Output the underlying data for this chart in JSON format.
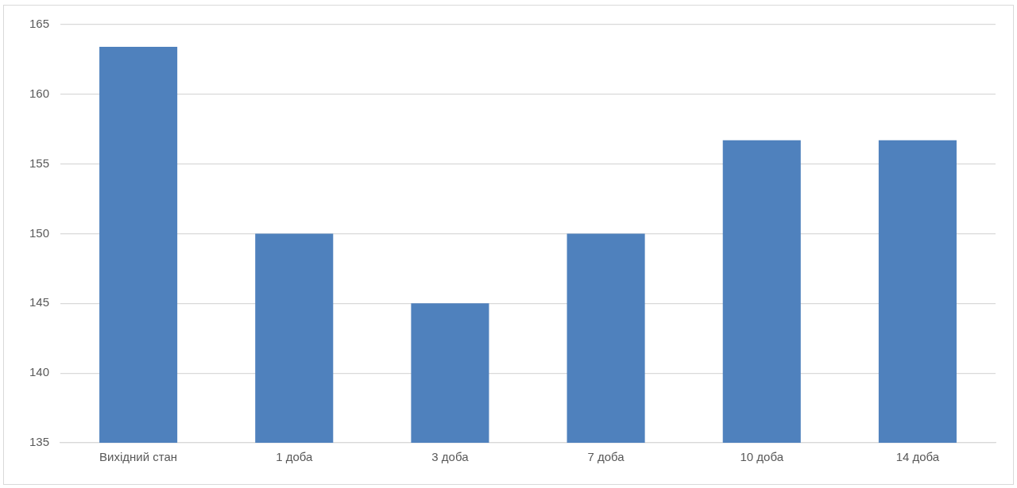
{
  "chart_data": {
    "type": "bar",
    "categories": [
      "Вихідний стан",
      "1 доба",
      "3 доба",
      "7 доба",
      "10 доба",
      "14 доба"
    ],
    "values": [
      163.4,
      150,
      145,
      150,
      156.7,
      156.7
    ],
    "color": "#4f81bd",
    "ylim": [
      135,
      165
    ],
    "yticks": [
      135,
      140,
      145,
      150,
      155,
      160,
      165
    ],
    "grid": "y"
  }
}
